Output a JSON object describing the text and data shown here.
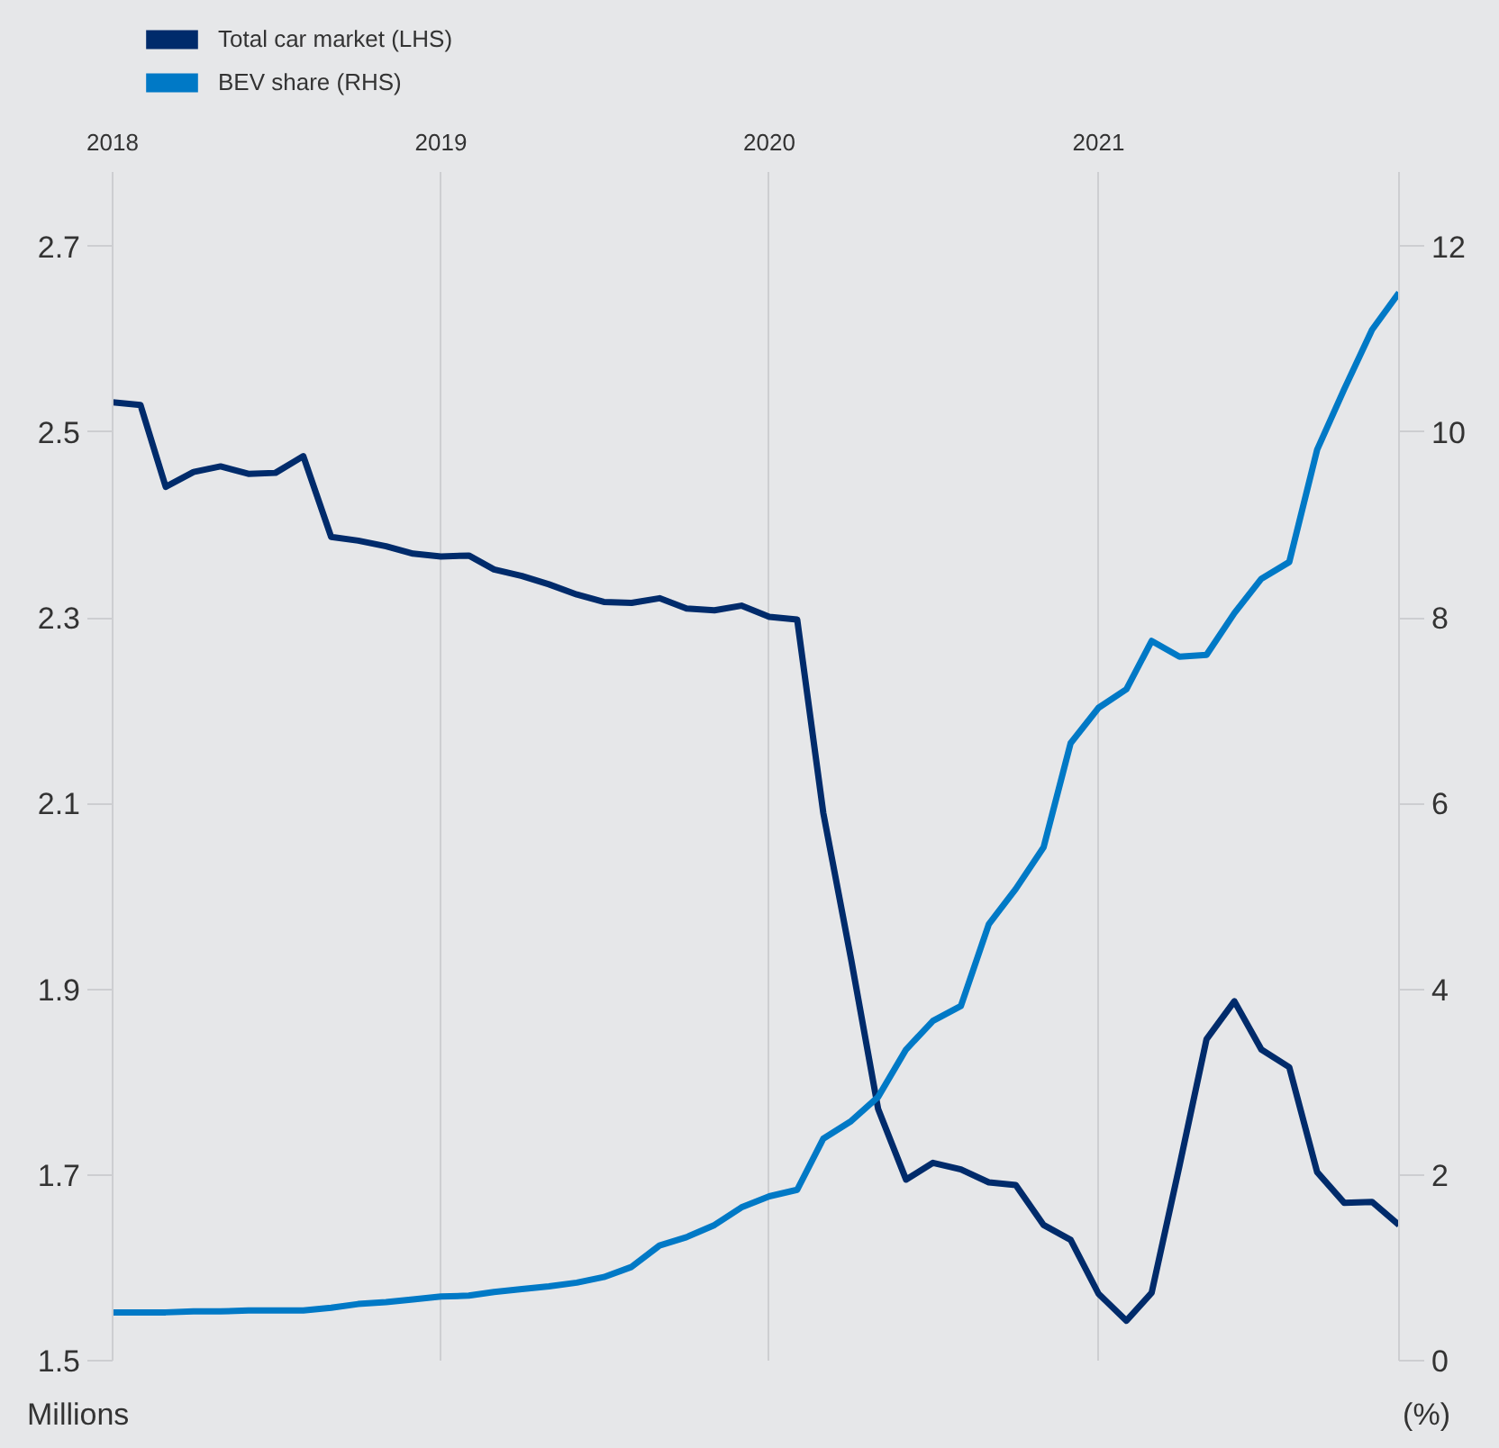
{
  "chart_data": {
    "type": "line",
    "x": [
      "2018-01",
      "2018-02",
      "2018-03",
      "2018-04",
      "2018-05",
      "2018-06",
      "2018-07",
      "2018-08",
      "2018-09",
      "2018-10",
      "2018-11",
      "2018-12",
      "2019-01",
      "2019-02",
      "2019-03",
      "2019-04",
      "2019-05",
      "2019-06",
      "2019-07",
      "2019-08",
      "2019-09",
      "2019-10",
      "2019-11",
      "2019-12",
      "2020-01",
      "2020-02",
      "2020-03",
      "2020-04",
      "2020-05",
      "2020-06",
      "2020-07",
      "2020-08",
      "2020-09",
      "2020-10",
      "2020-11",
      "2020-12",
      "2021-01",
      "2021-02",
      "2021-03",
      "2021-04",
      "2021-05",
      "2021-06",
      "2021-07",
      "2021-08",
      "2021-09",
      "2021-10",
      "2021-11",
      "2021-12"
    ],
    "series": [
      {
        "name": "Total car market (LHS)",
        "color": "#002b6b",
        "values": [
          2.532,
          2.529,
          2.441,
          2.457,
          2.463,
          2.455,
          2.456,
          2.474,
          2.387,
          2.383,
          2.377,
          2.369,
          2.366,
          2.367,
          2.352,
          2.345,
          2.336,
          2.325,
          2.317,
          2.316,
          2.321,
          2.31,
          2.308,
          2.313,
          2.301,
          2.298,
          2.09,
          1.932,
          1.771,
          1.695,
          1.713,
          1.706,
          1.692,
          1.689,
          1.646,
          1.63,
          1.572,
          1.543,
          1.573,
          1.71,
          1.846,
          1.887,
          1.835,
          1.816,
          1.703,
          1.67,
          1.671,
          1.646
        ]
      },
      {
        "name": "BEV share (RHS)",
        "color": "#0079c6",
        "axis": "y2",
        "values": [
          0.52,
          0.52,
          0.52,
          0.53,
          0.53,
          0.54,
          0.54,
          0.54,
          0.57,
          0.61,
          0.63,
          0.66,
          0.69,
          0.7,
          0.74,
          0.77,
          0.8,
          0.84,
          0.9,
          1.01,
          1.24,
          1.33,
          1.46,
          1.65,
          1.77,
          1.84,
          2.39,
          2.58,
          2.84,
          3.35,
          3.66,
          3.82,
          4.7,
          5.08,
          5.53,
          6.65,
          7.03,
          7.23,
          7.75,
          7.58,
          7.6,
          8.05,
          8.42,
          8.6,
          9.81,
          10.46,
          11.1,
          11.5
        ]
      }
    ],
    "xlim": [
      "2018-01",
      "2021-12"
    ],
    "xticks": [
      "2018",
      "2019",
      "2020",
      "2021"
    ],
    "ylim": [
      1.5,
      2.78
    ],
    "yticks": [
      1.5,
      1.7,
      1.9,
      2.1,
      2.3,
      2.5,
      2.7
    ],
    "y2lim": [
      0,
      12.8
    ],
    "y2ticks": [
      0,
      2,
      4,
      6,
      8,
      10,
      12
    ],
    "ylabel": "Millions",
    "y2label": "(%)",
    "grid": "x",
    "legend": "top left",
    "line_style": "solid"
  }
}
